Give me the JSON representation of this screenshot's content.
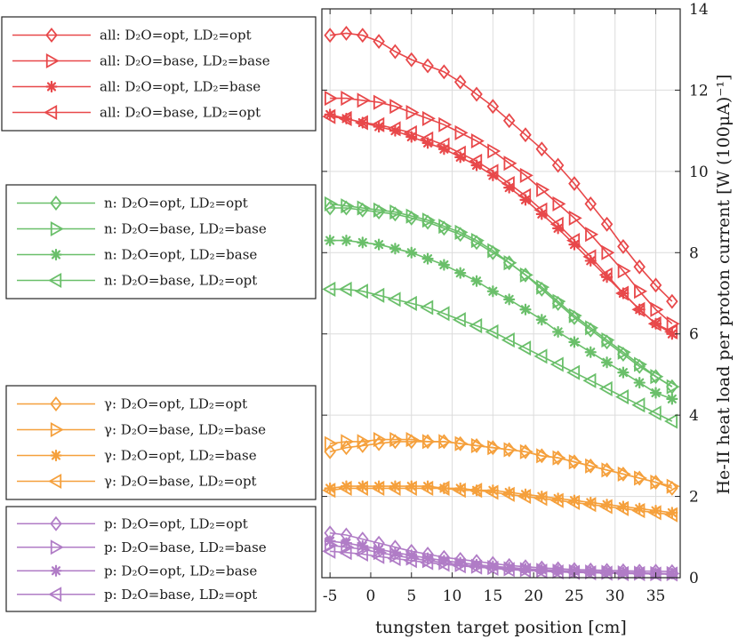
{
  "chart_data": {
    "type": "line",
    "xlabel": "tungsten target position [cm]",
    "ylabel": "He-II heat load per proton current [W (100μA)⁻¹]",
    "xlim": [
      -6,
      38
    ],
    "ylim": [
      0,
      14
    ],
    "x_ticks": [
      -5,
      0,
      5,
      10,
      15,
      20,
      25,
      30,
      35
    ],
    "x_tick_labels": [
      "-5",
      "0",
      "5",
      "10",
      "15",
      "20",
      "25",
      "30",
      "35"
    ],
    "y_ticks": [
      0,
      2,
      4,
      6,
      8,
      10,
      12,
      14
    ],
    "y_tick_labels": [
      "0",
      "2",
      "4",
      "6",
      "8",
      "10",
      "12",
      "14"
    ],
    "grid": true,
    "y_axis_side": "right",
    "colors": {
      "all": "#e8484a",
      "n": "#6abf6a",
      "gamma": "#f5a03c",
      "p": "#b07cc6"
    },
    "marker_names": [
      "diamond",
      "triangle-right",
      "asterisk",
      "triangle-left"
    ],
    "x": [
      -5,
      -3,
      -1,
      1,
      3,
      5,
      7,
      9,
      11,
      13,
      15,
      17,
      19,
      21,
      23,
      25,
      27,
      29,
      31,
      33,
      35,
      37
    ],
    "groups": [
      {
        "key": "all",
        "series": [
          {
            "name": "all: D₂O=opt, LD₂=opt",
            "prefix": "all:",
            "d2o": "opt",
            "ld2": "opt",
            "marker": "diamond",
            "values": [
              13.35,
              13.4,
              13.35,
              13.2,
              12.95,
              12.75,
              12.6,
              12.45,
              12.2,
              11.9,
              11.6,
              11.25,
              10.9,
              10.55,
              10.15,
              9.7,
              9.2,
              8.7,
              8.15,
              7.65,
              7.2,
              6.8
            ]
          },
          {
            "name": "all: D₂O=base, LD₂=base",
            "prefix": "all:",
            "d2o": "base",
            "ld2": "base",
            "marker": "triangle-right",
            "values": [
              11.8,
              11.8,
              11.75,
              11.7,
              11.6,
              11.45,
              11.3,
              11.15,
              10.95,
              10.75,
              10.5,
              10.2,
              9.9,
              9.55,
              9.2,
              8.85,
              8.45,
              8.0,
              7.55,
              7.05,
              6.6,
              6.25
            ]
          },
          {
            "name": "all: D₂O=opt, LD₂=base",
            "prefix": "all:",
            "d2o": "opt",
            "ld2": "base",
            "marker": "asterisk",
            "values": [
              11.4,
              11.3,
              11.2,
              11.1,
              11.0,
              10.85,
              10.7,
              10.55,
              10.35,
              10.15,
              9.9,
              9.6,
              9.3,
              8.95,
              8.6,
              8.2,
              7.8,
              7.4,
              7.0,
              6.6,
              6.25,
              6.0
            ]
          },
          {
            "name": "all: D₂O=base, LD₂=opt",
            "prefix": "all:",
            "d2o": "base",
            "ld2": "opt",
            "marker": "triangle-left",
            "values": [
              11.35,
              11.3,
              11.2,
              11.15,
              11.05,
              10.95,
              10.8,
              10.65,
              10.45,
              10.25,
              10.0,
              9.7,
              9.4,
              9.05,
              8.7,
              8.3,
              7.9,
              7.45,
              7.0,
              6.6,
              6.25,
              6.05
            ]
          }
        ]
      },
      {
        "key": "n",
        "series": [
          {
            "name": "n: D₂O=opt, LD₂=opt",
            "prefix": "n:",
            "d2o": "opt",
            "ld2": "opt",
            "marker": "diamond",
            "values": [
              9.1,
              9.1,
              9.05,
              9.0,
              8.95,
              8.85,
              8.75,
              8.6,
              8.45,
              8.25,
              8.0,
              7.75,
              7.45,
              7.1,
              6.75,
              6.4,
              6.1,
              5.8,
              5.5,
              5.2,
              4.95,
              4.7
            ]
          },
          {
            "name": "n: D₂O=base, LD₂=base",
            "prefix": "n:",
            "d2o": "base",
            "ld2": "base",
            "marker": "triangle-right",
            "values": [
              9.2,
              9.15,
              9.1,
              9.05,
              9.0,
              8.9,
              8.8,
              8.65,
              8.5,
              8.3,
              8.05,
              7.75,
              7.45,
              7.15,
              6.8,
              6.45,
              6.15,
              5.85,
              5.55,
              5.25,
              4.95,
              4.7
            ]
          },
          {
            "name": "n: D₂O=opt, LD₂=base",
            "prefix": "n:",
            "d2o": "opt",
            "ld2": "base",
            "marker": "asterisk",
            "values": [
              8.3,
              8.3,
              8.25,
              8.2,
              8.1,
              8.0,
              7.85,
              7.7,
              7.5,
              7.3,
              7.05,
              6.85,
              6.6,
              6.35,
              6.05,
              5.8,
              5.55,
              5.3,
              5.05,
              4.8,
              4.55,
              4.4
            ]
          },
          {
            "name": "n: D₂O=base, LD₂=opt",
            "prefix": "n:",
            "d2o": "base",
            "ld2": "opt",
            "marker": "triangle-left",
            "values": [
              7.1,
              7.1,
              7.05,
              6.95,
              6.85,
              6.75,
              6.65,
              6.5,
              6.35,
              6.2,
              6.05,
              5.85,
              5.65,
              5.45,
              5.25,
              5.05,
              4.85,
              4.65,
              4.45,
              4.25,
              4.05,
              3.85
            ]
          }
        ]
      },
      {
        "key": "gamma",
        "series": [
          {
            "name": "γ: D₂O=opt, LD₂=opt",
            "prefix": "γ:",
            "d2o": "opt",
            "ld2": "opt",
            "marker": "diamond",
            "values": [
              3.1,
              3.2,
              3.25,
              3.3,
              3.35,
              3.35,
              3.35,
              3.35,
              3.3,
              3.25,
              3.2,
              3.15,
              3.1,
              3.0,
              2.95,
              2.85,
              2.75,
              2.65,
              2.55,
              2.45,
              2.35,
              2.2
            ]
          },
          {
            "name": "γ: D₂O=base, LD₂=base",
            "prefix": "γ:",
            "d2o": "base",
            "ld2": "base",
            "marker": "triangle-right",
            "values": [
              3.3,
              3.35,
              3.35,
              3.4,
              3.4,
              3.4,
              3.35,
              3.35,
              3.3,
              3.25,
              3.2,
              3.15,
              3.1,
              3.0,
              2.95,
              2.85,
              2.75,
              2.65,
              2.55,
              2.45,
              2.35,
              2.25
            ]
          },
          {
            "name": "γ: D₂O=opt, LD₂=base",
            "prefix": "γ:",
            "d2o": "opt",
            "ld2": "base",
            "marker": "asterisk",
            "values": [
              2.2,
              2.25,
              2.25,
              2.25,
              2.25,
              2.25,
              2.25,
              2.2,
              2.2,
              2.15,
              2.15,
              2.1,
              2.05,
              2.0,
              1.95,
              1.9,
              1.85,
              1.8,
              1.75,
              1.7,
              1.65,
              1.6
            ]
          },
          {
            "name": "γ: D₂O=base, LD₂=opt",
            "prefix": "γ:",
            "d2o": "base",
            "ld2": "opt",
            "marker": "triangle-left",
            "values": [
              2.15,
              2.2,
              2.2,
              2.2,
              2.2,
              2.2,
              2.2,
              2.2,
              2.15,
              2.15,
              2.1,
              2.05,
              2.0,
              1.95,
              1.9,
              1.85,
              1.8,
              1.75,
              1.7,
              1.65,
              1.6,
              1.55
            ]
          }
        ]
      },
      {
        "key": "p",
        "series": [
          {
            "name": "p: D₂O=opt, LD₂=opt",
            "prefix": "p:",
            "d2o": "opt",
            "ld2": "opt",
            "marker": "diamond",
            "values": [
              1.1,
              1.05,
              0.95,
              0.85,
              0.75,
              0.65,
              0.58,
              0.5,
              0.45,
              0.4,
              0.35,
              0.3,
              0.27,
              0.24,
              0.22,
              0.2,
              0.19,
              0.18,
              0.17,
              0.16,
              0.16,
              0.15
            ]
          },
          {
            "name": "p: D₂O=base, LD₂=base",
            "prefix": "p:",
            "d2o": "base",
            "ld2": "base",
            "marker": "triangle-right",
            "values": [
              0.8,
              0.75,
              0.7,
              0.62,
              0.55,
              0.48,
              0.42,
              0.37,
              0.32,
              0.28,
              0.25,
              0.22,
              0.2,
              0.18,
              0.16,
              0.15,
              0.14,
              0.13,
              0.12,
              0.11,
              0.1,
              0.1
            ]
          },
          {
            "name": "p: D₂O=opt, LD₂=base",
            "prefix": "p:",
            "d2o": "opt",
            "ld2": "base",
            "marker": "asterisk",
            "values": [
              0.9,
              0.85,
              0.78,
              0.7,
              0.62,
              0.55,
              0.48,
              0.42,
              0.37,
              0.32,
              0.28,
              0.25,
              0.22,
              0.2,
              0.18,
              0.16,
              0.15,
              0.14,
              0.13,
              0.12,
              0.11,
              0.1
            ]
          },
          {
            "name": "p: D₂O=base, LD₂=opt",
            "prefix": "p:",
            "d2o": "base",
            "ld2": "opt",
            "marker": "triangle-left",
            "values": [
              0.65,
              0.62,
              0.58,
              0.52,
              0.47,
              0.42,
              0.37,
              0.33,
              0.29,
              0.26,
              0.23,
              0.2,
              0.18,
              0.16,
              0.14,
              0.13,
              0.12,
              0.11,
              0.1,
              0.1,
              0.09,
              0.09
            ]
          }
        ]
      }
    ]
  }
}
